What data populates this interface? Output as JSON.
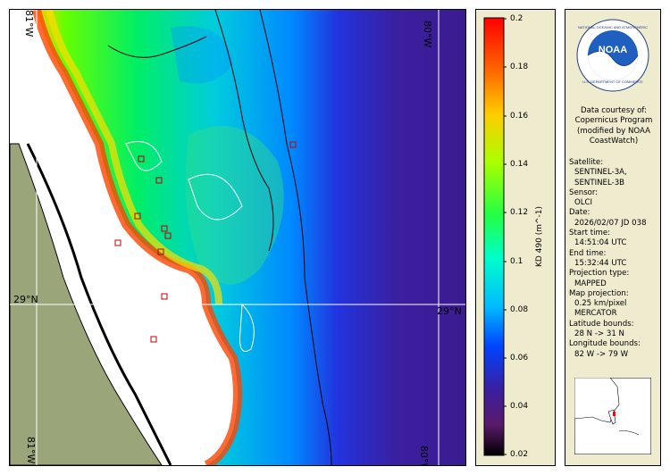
{
  "map": {
    "lat_label_left": "29°N",
    "lat_label_right": "29°N",
    "lon_label_top": "80°W",
    "lon_label_bottom": "80°W",
    "lon_label_top_left": "81°W",
    "lon_label_bottom_left": "81°W",
    "colors": {
      "land": "#9aa57a",
      "water_deep": "#3b1b8f",
      "grid": "#ffffff",
      "station_marker": "#c00000"
    }
  },
  "colorbar": {
    "title": "KD 490 (m^-1)",
    "ticks": [
      "0.2",
      "0.18",
      "0.16",
      "0.14",
      "0.12",
      "0.1",
      "0.08",
      "0.06",
      "0.04",
      "0.02"
    ],
    "min": 0.02,
    "max": 0.2
  },
  "info": {
    "logo_text": "NOAA",
    "logo_ring_text": "NATIONAL OCEANIC AND ATMOSPHERIC ADMINISTRATION",
    "logo_bottom_text": "U.S. DEPARTMENT OF COMMERCE",
    "credit": "Data courtesy of: Copernicus Program (modified by NOAA CoastWatch)",
    "satellite_label": "Satellite:",
    "satellite_value1": "SENTINEL-3A,",
    "satellite_value2": "SENTINEL-3B",
    "sensor_label": "Sensor:",
    "sensor_value": "OLCI",
    "date_label": "Date:",
    "date_value": "2026/02/07 JD 038",
    "start_label": "Start time:",
    "start_value": "14:51:04 UTC",
    "end_label": "End time:",
    "end_value": "15:32:44 UTC",
    "projtype_label": "Projection type:",
    "projtype_value": "MAPPED",
    "mapproj_label": "Map projection:",
    "mapproj_value1": "0.25 km/pixel",
    "mapproj_value2": "MERCATOR",
    "latb_label": "Latitude bounds:",
    "latb_value": "28 N -> 31 N",
    "lonb_label": "Longitude bounds:",
    "lonb_value": "82 W -> 79 W"
  }
}
